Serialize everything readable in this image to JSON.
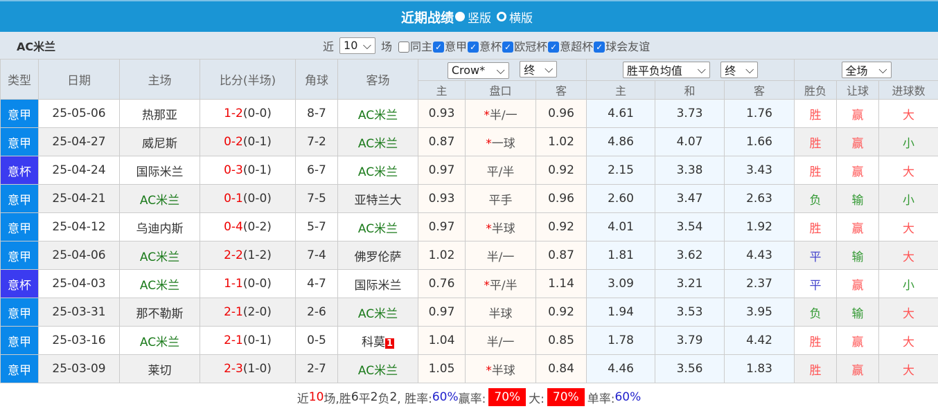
{
  "title": {
    "text": "近期战绩",
    "opt1": "竖版",
    "opt2": "横版"
  },
  "filter": {
    "team": "AC米兰",
    "near": "近",
    "count": "10",
    "unit": "场",
    "checks": [
      {
        "label": "同主",
        "checked": false
      },
      {
        "label": "意甲",
        "checked": true
      },
      {
        "label": "意杯",
        "checked": true
      },
      {
        "label": "欧冠杯",
        "checked": true
      },
      {
        "label": "意超杯",
        "checked": true
      },
      {
        "label": "球会友谊",
        "checked": true
      }
    ]
  },
  "header": {
    "type": "类型",
    "date": "日期",
    "home": "主场",
    "score": "比分(半场)",
    "corner": "角球",
    "away": "客场",
    "company": "Crow*",
    "odds_stage": "终",
    "ox_select": "胜平负均值",
    "ox_stage": "终",
    "range": "全场",
    "sub": [
      "主",
      "盘口",
      "客",
      "主",
      "和",
      "客",
      "胜负",
      "让球",
      "进球数"
    ]
  },
  "colors": {
    "league": "#0a88ea",
    "cup": "#3b3bf0"
  },
  "rows": [
    {
      "type": "意甲",
      "kind": "league",
      "date": "25-05-06",
      "home": "热那亚",
      "score": "1-2",
      "half": "(0-0)",
      "corner": "8-7",
      "away": "AC米兰",
      "oh": "0.93",
      "star": "*",
      "pan": "半/一",
      "oa": "0.96",
      "xh": "4.61",
      "xd": "3.73",
      "xa": "1.76",
      "r1": "胜",
      "r2": "赢",
      "r3": "大"
    },
    {
      "type": "意甲",
      "kind": "league",
      "date": "25-04-27",
      "home": "威尼斯",
      "score": "0-2",
      "half": "(0-1)",
      "corner": "7-2",
      "away": "AC米兰",
      "oh": "0.87",
      "star": "*",
      "pan": "一球",
      "oa": "1.02",
      "xh": "4.86",
      "xd": "4.07",
      "xa": "1.66",
      "r1": "胜",
      "r2": "赢",
      "r3": "小"
    },
    {
      "type": "意杯",
      "kind": "cup",
      "date": "25-04-24",
      "home": "国际米兰",
      "score": "0-3",
      "half": "(0-1)",
      "corner": "6-7",
      "away": "AC米兰",
      "oh": "0.97",
      "star": "",
      "pan": "平/半",
      "oa": "0.92",
      "xh": "2.15",
      "xd": "3.38",
      "xa": "3.43",
      "r1": "胜",
      "r2": "赢",
      "r3": "大"
    },
    {
      "type": "意甲",
      "kind": "league",
      "date": "25-04-21",
      "home": "AC米兰",
      "score": "0-1",
      "half": "(0-0)",
      "corner": "7-5",
      "away": "亚特兰大",
      "oh": "0.93",
      "star": "",
      "pan": "平手",
      "oa": "0.96",
      "xh": "2.60",
      "xd": "3.47",
      "xa": "2.63",
      "r1": "负",
      "r2": "输",
      "r3": "小"
    },
    {
      "type": "意甲",
      "kind": "league",
      "date": "25-04-12",
      "home": "乌迪内斯",
      "score": "0-4",
      "half": "(0-2)",
      "corner": "5-7",
      "away": "AC米兰",
      "oh": "0.97",
      "star": "*",
      "pan": "半球",
      "oa": "0.92",
      "xh": "4.01",
      "xd": "3.54",
      "xa": "1.92",
      "r1": "胜",
      "r2": "赢",
      "r3": "大"
    },
    {
      "type": "意甲",
      "kind": "league",
      "date": "25-04-06",
      "home": "AC米兰",
      "score": "2-2",
      "half": "(1-2)",
      "corner": "7-4",
      "away": "佛罗伦萨",
      "oh": "1.02",
      "star": "",
      "pan": "半/一",
      "oa": "0.87",
      "xh": "1.81",
      "xd": "3.62",
      "xa": "4.43",
      "r1": "平",
      "r2": "输",
      "r3": "大"
    },
    {
      "type": "意杯",
      "kind": "cup",
      "date": "25-04-03",
      "home": "AC米兰",
      "score": "1-1",
      "half": "(0-0)",
      "corner": "4-7",
      "away": "国际米兰",
      "oh": "0.76",
      "star": "*",
      "pan": "平/半",
      "oa": "1.14",
      "xh": "3.09",
      "xd": "3.21",
      "xa": "2.37",
      "r1": "平",
      "r2": "赢",
      "r3": "小"
    },
    {
      "type": "意甲",
      "kind": "league",
      "date": "25-03-31",
      "home": "那不勒斯",
      "score": "2-1",
      "half": "(2-0)",
      "corner": "2-6",
      "away": "AC米兰",
      "oh": "0.97",
      "star": "",
      "pan": "半球",
      "oa": "0.92",
      "xh": "1.94",
      "xd": "3.53",
      "xa": "3.95",
      "r1": "负",
      "r2": "输",
      "r3": "大"
    },
    {
      "type": "意甲",
      "kind": "league",
      "date": "25-03-16",
      "home": "AC米兰",
      "score": "2-1",
      "half": "(0-1)",
      "corner": "0-5",
      "away": "科莫",
      "red_card": "1",
      "oh": "1.04",
      "star": "",
      "pan": "半/一",
      "oa": "0.85",
      "xh": "1.78",
      "xd": "3.79",
      "xa": "4.42",
      "r1": "胜",
      "r2": "赢",
      "r3": "大"
    },
    {
      "type": "意甲",
      "kind": "league",
      "date": "25-03-09",
      "home": "莱切",
      "score": "2-3",
      "half": "(1-0)",
      "corner": "2-7",
      "away": "AC米兰",
      "oh": "1.05",
      "star": "*",
      "pan": "半球",
      "oa": "0.84",
      "xh": "4.46",
      "xd": "3.56",
      "xa": "1.83",
      "r1": "胜",
      "r2": "赢",
      "r3": "大"
    }
  ],
  "footer": {
    "p1": "近",
    "n": "10",
    "p2": "场,胜",
    "w": "6",
    "p3": "平",
    "d": "2",
    "p4": "负",
    "l": "2",
    "p5": ", 胜率:",
    "wr": "60%",
    "p6": " 赢率:",
    "yr": "70%",
    "p7": " 大:",
    "br": "70%",
    "p8": " 单率:",
    "sr": "60%"
  }
}
